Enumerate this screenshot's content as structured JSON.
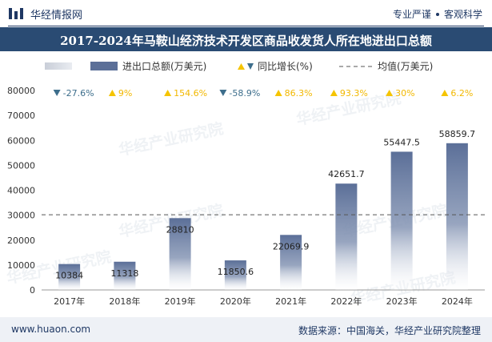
{
  "brand": {
    "name": "华经情报网",
    "tag_left": "专业严谨",
    "tag_right": "客观科学"
  },
  "title": "2017-2024年马鞍山经济技术开发区商品收发货人所在地进出口总额",
  "footer": {
    "website": "www.huaon.com",
    "source": "数据来源：中国海关，华经产业研究院整理"
  },
  "watermark": "华经产业研究院",
  "colors": {
    "bar": "#5b6f98",
    "up": "#f5c400",
    "down": "#3d6e8c",
    "avg": "#555555",
    "title_bg": "#2a4b73"
  },
  "chart_data": {
    "type": "bar",
    "categories": [
      "2017年",
      "2018年",
      "2019年",
      "2020年",
      "2021年",
      "2022年",
      "2023年",
      "2024年"
    ],
    "series": [
      {
        "name": "进出口总额(万美元)",
        "values": [
          10384,
          11318,
          28810,
          11850.6,
          22069.9,
          42651.7,
          55447.5,
          58859.7
        ]
      }
    ],
    "value_labels": [
      "10384",
      "11318",
      "28810",
      "11850.6",
      "22069.9",
      "42651.7",
      "55447.5",
      "58859.7"
    ],
    "growth": {
      "name": "同比增长(%)",
      "labels": [
        "-27.6%",
        "9%",
        "154.6%",
        "-58.9%",
        "86.3%",
        "93.3%",
        "30%",
        "6.2%"
      ],
      "directions": [
        "down",
        "up",
        "up",
        "down",
        "up",
        "up",
        "up",
        "up"
      ]
    },
    "average": {
      "name": "均值(万美元)",
      "value": 30174
    },
    "legend": [
      "",
      "进出口总额(万美元)",
      "同比增长(%)",
      "均值(万美元)"
    ],
    "ylim": [
      0,
      80000
    ],
    "yticks": [
      "0",
      "10000",
      "20000",
      "30000",
      "40000",
      "50000",
      "60000",
      "70000",
      "80000"
    ],
    "legend_position": "top",
    "grid": false
  }
}
